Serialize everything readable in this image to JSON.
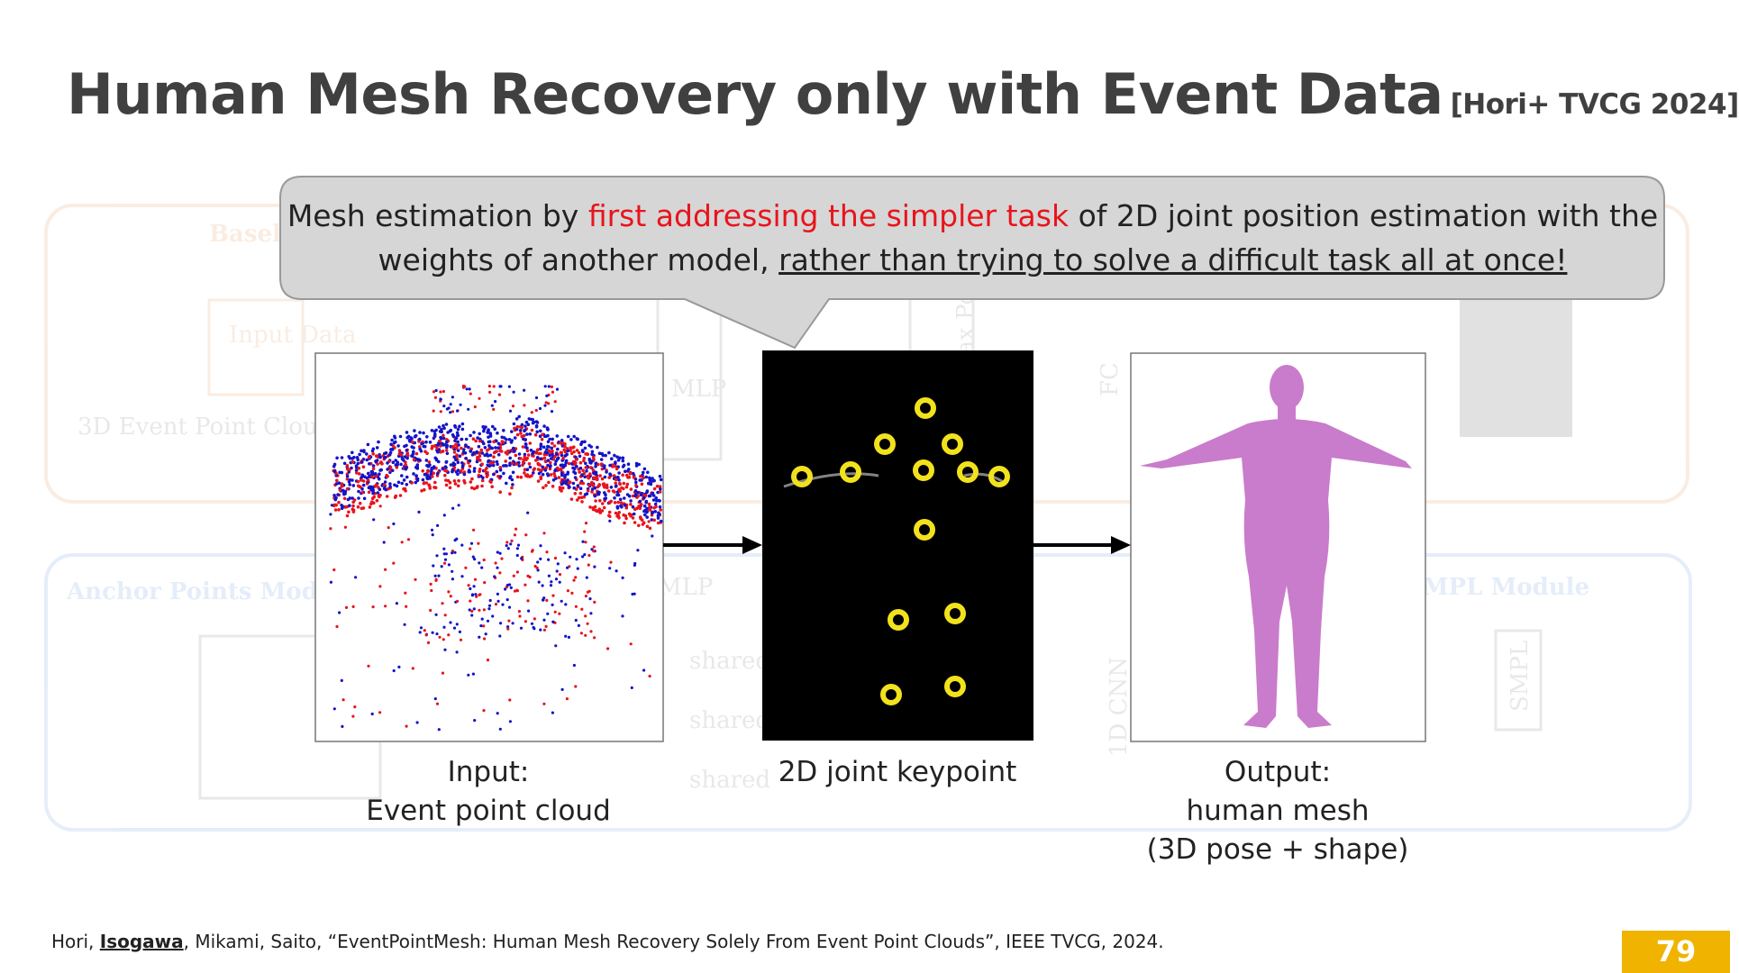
{
  "header": {
    "title": "Human Mesh Recovery only with Event Data",
    "citation": "[Hori+ TVCG 2024]"
  },
  "callout": {
    "parts": [
      "Mesh estimation by ",
      "first addressing the simpler task",
      " of 2D joint position estimation with the weights of another model, ",
      "rather than trying to solve a difficult task all at once!"
    ]
  },
  "panels": {
    "input": {
      "lines": [
        "Input:",
        "Event point cloud"
      ]
    },
    "keypoint": {
      "lines": [
        "2D joint keypoint"
      ]
    },
    "output": {
      "lines": [
        "Output:",
        "human mesh",
        "(3D pose + shape)"
      ]
    }
  },
  "background": {
    "labels": [
      "Baseline",
      "Input Data",
      "3D Event Point Cloud",
      "MLP",
      "MLP",
      "Max Pooling",
      "FC",
      "Anchor Points Module",
      "shared",
      "shared",
      "shared",
      "1D CNN",
      "SMPL Module",
      "SMPL"
    ]
  },
  "footer": {
    "parts": [
      "Hori, ",
      "Isogawa",
      ", Mikami, Saito, “EventPointMesh: Human Mesh Recovery Solely From Event Point Clouds”, IEEE TVCG, 2024."
    ],
    "page": "79"
  }
}
